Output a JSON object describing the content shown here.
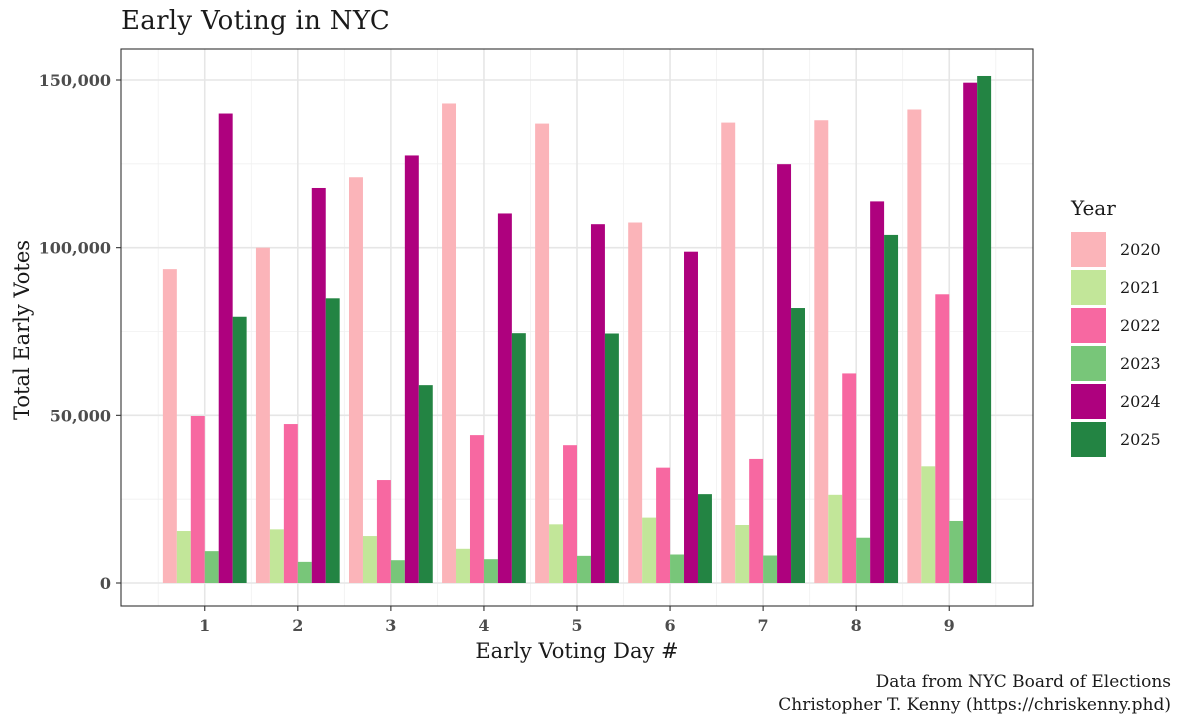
{
  "chart_data": {
    "type": "bar",
    "title": "Early Voting in NYC",
    "xlabel": "Early Voting Day #",
    "ylabel": "Total Early Votes",
    "categories": [
      "1",
      "2",
      "3",
      "4",
      "5",
      "6",
      "7",
      "8",
      "9"
    ],
    "ylim": [
      0,
      157000
    ],
    "yticks": [
      0,
      50000,
      100000,
      150000
    ],
    "ytick_labels": [
      "0",
      "50,000",
      "100,000",
      "150,000"
    ],
    "grid": true,
    "legend_title": "Year",
    "legend_position": "right",
    "series": [
      {
        "name": "2020",
        "color": "#fbb4b9",
        "values": [
          93600,
          100000,
          121000,
          143000,
          137000,
          107500,
          137300,
          138000,
          141200
        ]
      },
      {
        "name": "2021",
        "color": "#c2e699",
        "values": [
          15500,
          16000,
          14000,
          10200,
          17500,
          19500,
          17300,
          26300,
          34800
        ]
      },
      {
        "name": "2022",
        "color": "#f768a1",
        "values": [
          49800,
          47400,
          30700,
          44100,
          41100,
          34400,
          37000,
          62500,
          86100
        ]
      },
      {
        "name": "2023",
        "color": "#78c679",
        "values": [
          9500,
          6300,
          6800,
          7100,
          8100,
          8500,
          8200,
          13500,
          18500
        ]
      },
      {
        "name": "2024",
        "color": "#ae017e",
        "values": [
          140000,
          117800,
          127500,
          110200,
          107000,
          98800,
          124900,
          113800,
          149200
        ]
      },
      {
        "name": "2025",
        "color": "#238443",
        "values": [
          79400,
          84900,
          59000,
          74500,
          74400,
          26500,
          82000,
          103800,
          151200
        ]
      }
    ]
  },
  "caption": {
    "line1": "Data from NYC Board of Elections",
    "line2": "Christopher T. Kenny (https://chriskenny.phd)"
  }
}
